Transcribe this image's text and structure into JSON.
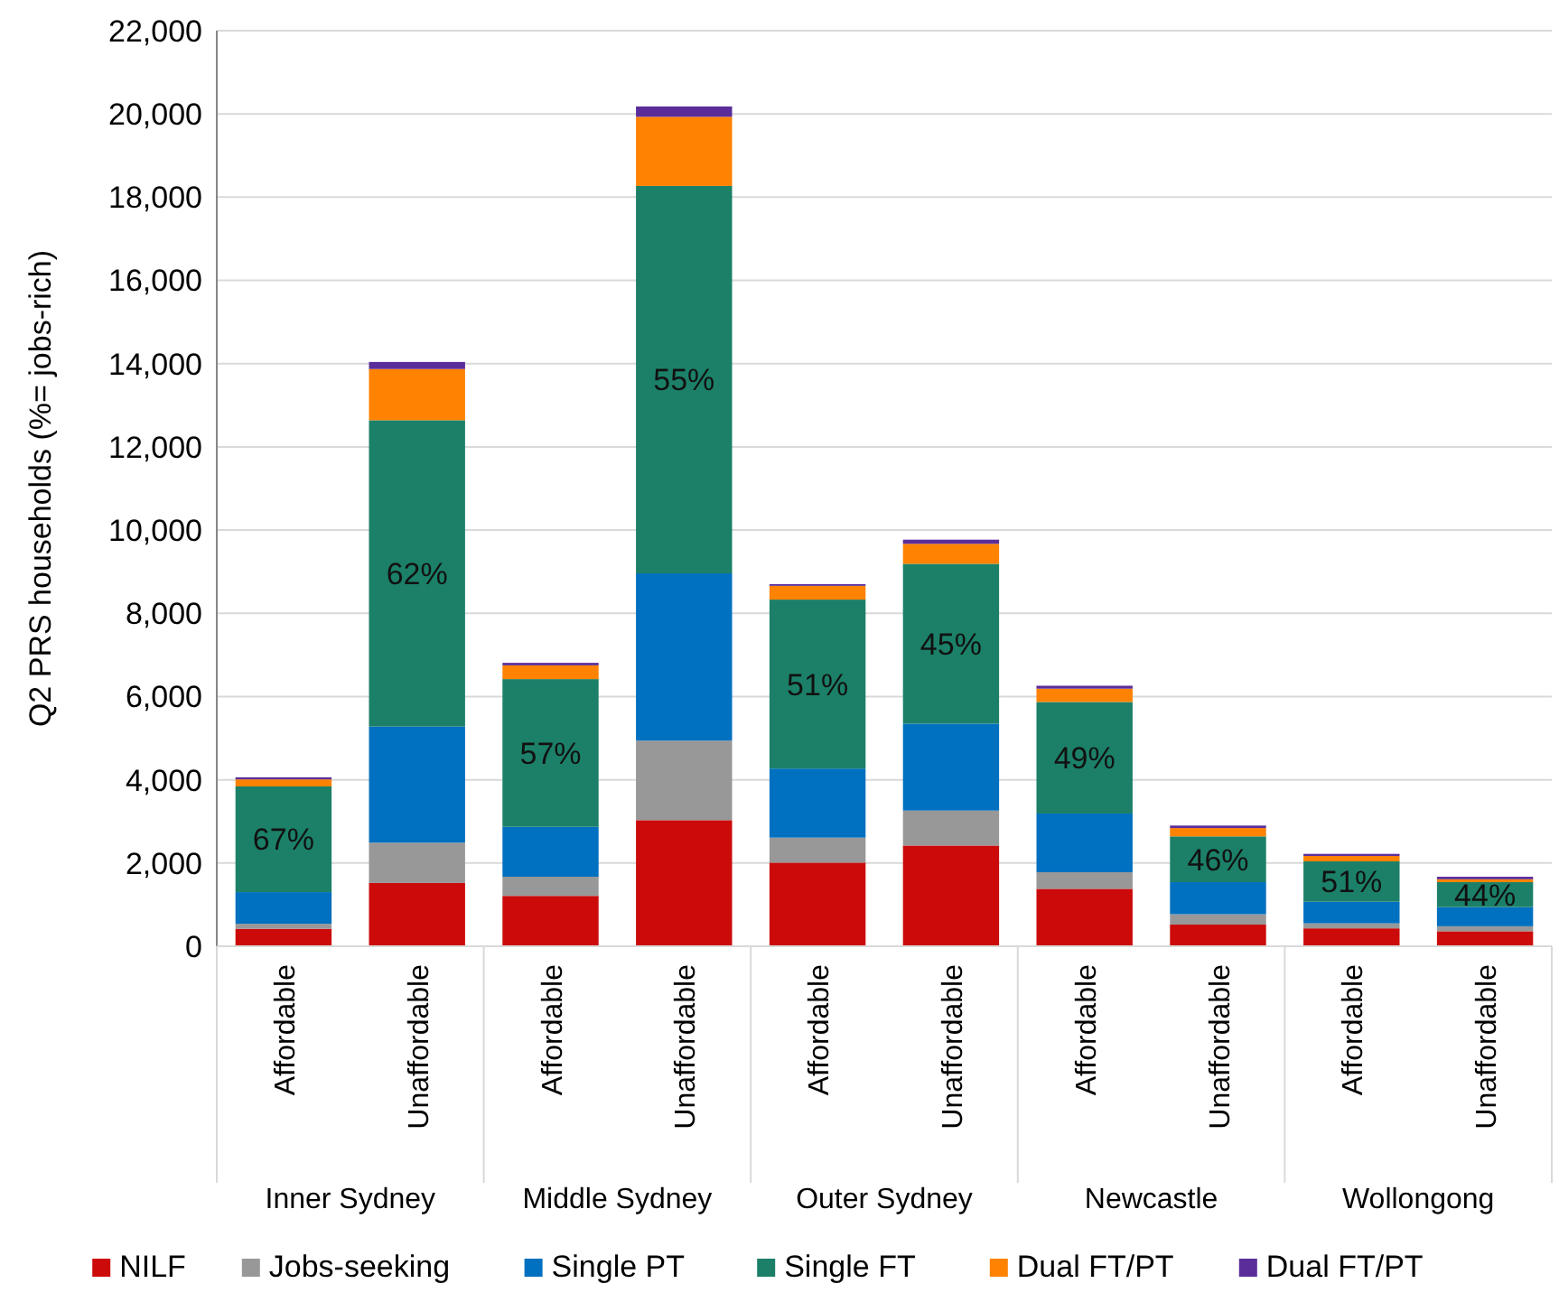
{
  "chart_data": {
    "type": "bar",
    "stacked": true,
    "ylabel": "Q2 PRS households (%= jobs-rich)",
    "categories": [
      "Affordable",
      "Unaffordable",
      "Affordable",
      "Unaffordable",
      "Affordable",
      "Unaffordable",
      "Affordable",
      "Unaffordable",
      "Affordable",
      "Unaffordable"
    ],
    "annotations": [
      "Inner Sydney",
      "Middle Sydney",
      "Outer Sydney",
      "Newcastle",
      "Wollongong",
      "67%",
      "62%",
      "57%",
      "55%",
      "51%",
      "45%",
      "49%",
      "46%",
      "51%",
      "44%"
    ],
    "series": [
      {
        "name": "NILF",
        "color": "#cc0a0a",
        "values": [
          420,
          1520,
          1210,
          3030,
          2010,
          2420,
          1380,
          520,
          430,
          360
        ]
      },
      {
        "name": "Jobs-seeking",
        "color": "#989898",
        "values": [
          120,
          970,
          460,
          1910,
          600,
          840,
          400,
          250,
          120,
          120
        ]
      },
      {
        "name": "Single PT",
        "color": "#0070c0",
        "values": [
          760,
          2790,
          1200,
          4020,
          1660,
          2090,
          1410,
          770,
          520,
          460
        ]
      },
      {
        "name": "Single FT",
        "color": "#1c8068",
        "values": [
          2540,
          7360,
          3550,
          9310,
          4060,
          3840,
          2680,
          1100,
          970,
          600
        ]
      },
      {
        "name": "Dual FT/PT",
        "color": "#ff8200",
        "values": [
          170,
          1230,
          330,
          1660,
          330,
          480,
          320,
          200,
          130,
          70
        ]
      },
      {
        "name": "Dual FT/PT",
        "color": "#5b2d9a",
        "values": [
          50,
          170,
          60,
          250,
          40,
          100,
          70,
          60,
          50,
          60
        ]
      }
    ],
    "ylim": [
      0,
      22000
    ],
    "yticks": [
      {
        "value": 0,
        "label": "0"
      },
      {
        "value": 2000,
        "label": "2,000"
      },
      {
        "value": 4000,
        "label": "4,000"
      },
      {
        "value": 6000,
        "label": "6,000"
      },
      {
        "value": 8000,
        "label": "8,000"
      },
      {
        "value": 10000,
        "label": "10,000"
      },
      {
        "value": 12000,
        "label": "12,000"
      },
      {
        "value": 14000,
        "label": "14,000"
      },
      {
        "value": 16000,
        "label": "16,000"
      },
      {
        "value": 18000,
        "label": "18,000"
      },
      {
        "value": 20000,
        "label": "20,000"
      },
      {
        "value": 22000,
        "label": "22,000"
      }
    ],
    "grid": "y",
    "legend": "bottom"
  }
}
